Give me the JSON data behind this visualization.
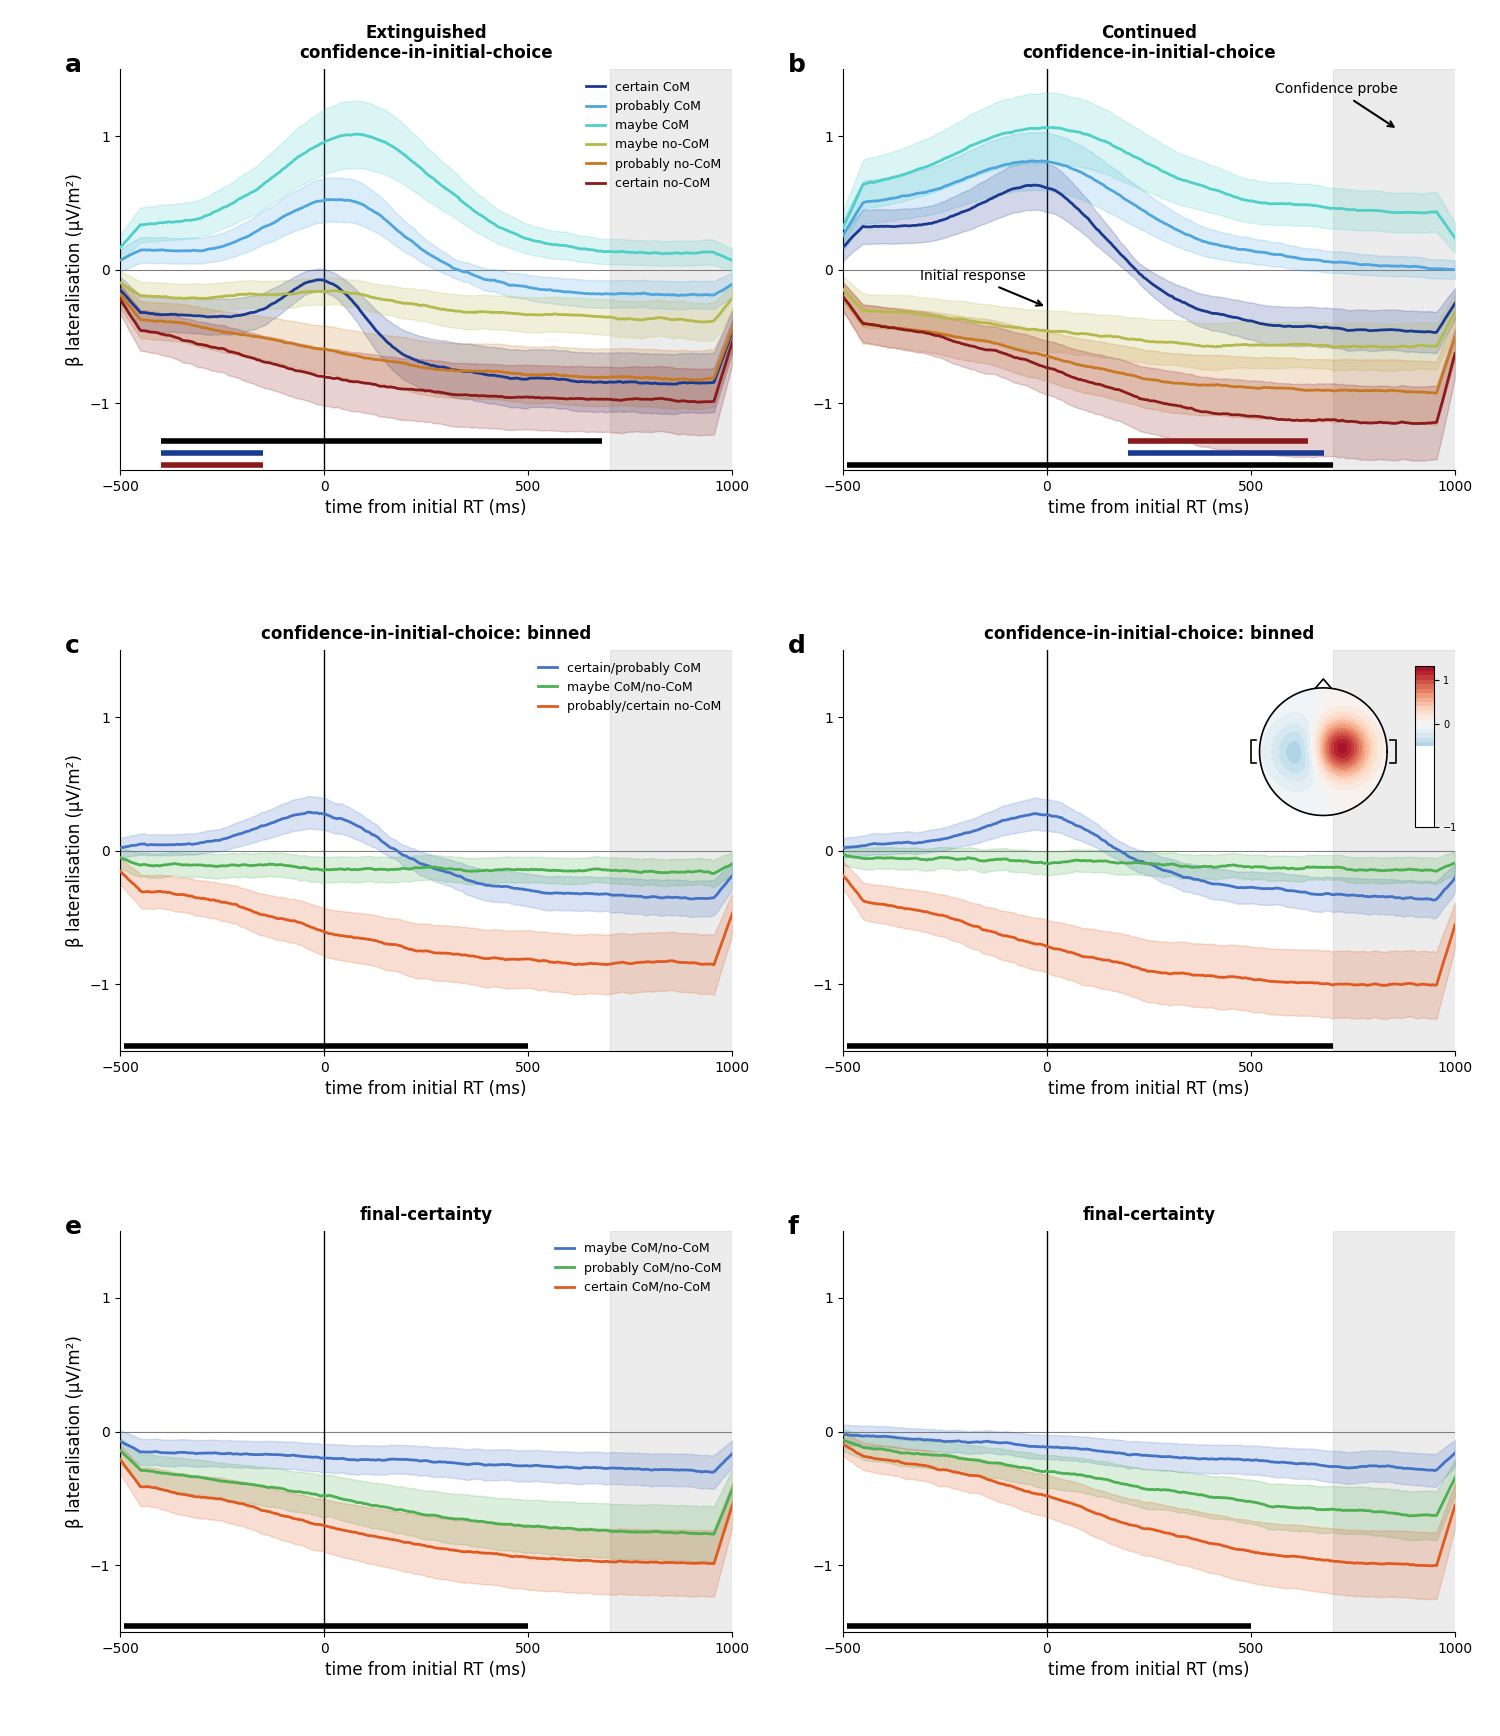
{
  "xlim": [
    -500,
    1000
  ],
  "ylim": [
    -1.5,
    1.5
  ],
  "gray_region_start": 700,
  "gray_region_end": 1000,
  "xticks": [
    -500,
    0,
    500,
    1000
  ],
  "yticks": [
    -1,
    0,
    1
  ],
  "xlabel": "time from initial RT (ms)",
  "ylabel": "β lateralisation (μV/m²)",
  "colors_6": {
    "certain_CoM": "#1a3a8f",
    "probably_CoM": "#4ea6dc",
    "maybe_CoM": "#4ecfc8",
    "maybe_noCoM": "#b5b84a",
    "probably_noCoM": "#c87820",
    "certain_noCoM": "#8b1a1a"
  },
  "colors_3_cd": {
    "certain_probably_CoM": "#4472c4",
    "maybe_CoM_noCoM": "#4caf50",
    "probably_certain_noCoM": "#e05a20"
  },
  "colors_3_ef": {
    "maybe_CoM_noCoM": "#4472c4",
    "probably_CoM_noCoM": "#4caf50",
    "certain_CoM_noCoM": "#e05a20"
  },
  "panel_titles": {
    "a": "Extinguished\nconfidence-in-initial-choice",
    "b": "Continued\nconfidence-in-initial-choice",
    "c": "confidence-in-initial-choice: binned",
    "d": "confidence-in-initial-choice: binned",
    "e": "final-certainty",
    "f": "final-certainty"
  },
  "legend_ab": [
    "certain CoM",
    "probably CoM",
    "maybe CoM",
    "maybe no-CoM",
    "probably no-CoM",
    "certain no-CoM"
  ],
  "legend_cd": [
    "certain/probably CoM",
    "maybe CoM/no-CoM",
    "probably/certain no-CoM"
  ],
  "legend_ef": [
    "maybe CoM/no-CoM",
    "probably CoM/no-CoM",
    "certain CoM/no-CoM"
  ]
}
